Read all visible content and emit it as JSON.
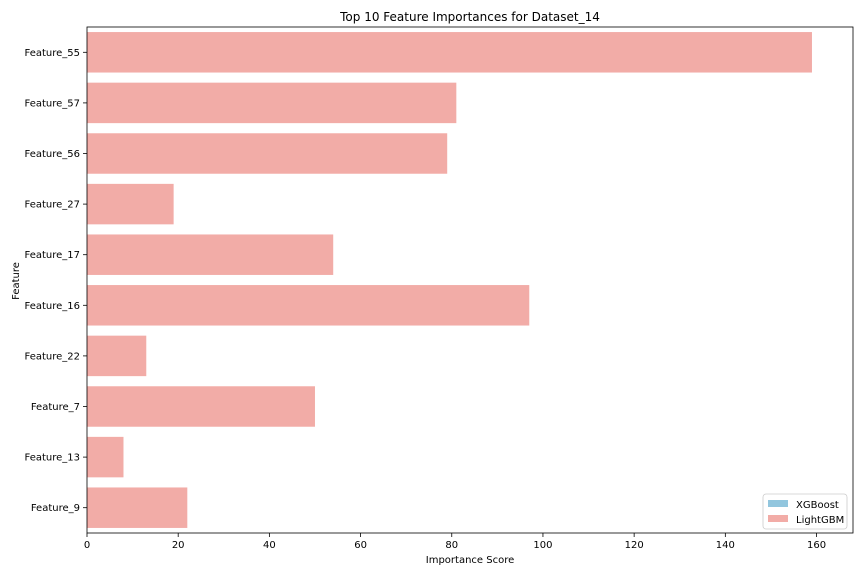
{
  "chart_data": {
    "type": "bar",
    "orientation": "horizontal",
    "title": "Top 10 Feature Importances for Dataset_14",
    "xlabel": "Importance Score",
    "ylabel": "Feature",
    "xlim": [
      0,
      168
    ],
    "xticks": [
      0,
      20,
      40,
      60,
      80,
      100,
      120,
      140,
      160
    ],
    "categories": [
      "Feature_55",
      "Feature_57",
      "Feature_56",
      "Feature_27",
      "Feature_17",
      "Feature_16",
      "Feature_22",
      "Feature_7",
      "Feature_13",
      "Feature_9"
    ],
    "series": [
      {
        "name": "XGBoost",
        "color": "#92c6de",
        "values": [
          0.4,
          0,
          0,
          0,
          0,
          0,
          0,
          0,
          0,
          0
        ]
      },
      {
        "name": "LightGBM",
        "color": "#f2aca7",
        "values": [
          159,
          81,
          79,
          19,
          54,
          97,
          13,
          50,
          8,
          22
        ]
      }
    ],
    "legend_position": "bottom-right",
    "grid": false
  }
}
